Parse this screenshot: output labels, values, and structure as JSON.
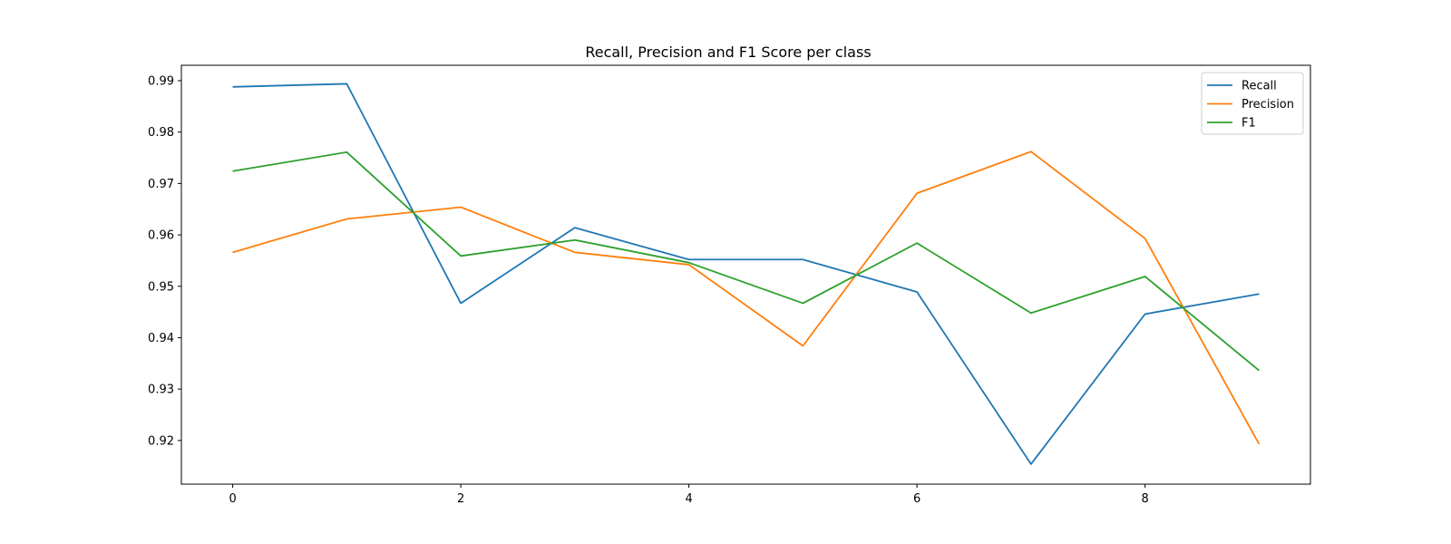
{
  "chart_data": {
    "type": "line",
    "title": "Recall, Precision and F1 Score per class",
    "xlabel": "",
    "ylabel": "",
    "x": [
      0,
      1,
      2,
      3,
      4,
      5,
      6,
      7,
      8,
      9
    ],
    "xlim": [
      -0.45,
      9.45
    ],
    "ylim": [
      0.9115,
      0.993
    ],
    "xticks": [
      0,
      2,
      4,
      6,
      8
    ],
    "xtick_labels": [
      "0",
      "2",
      "4",
      "6",
      "8"
    ],
    "yticks": [
      0.92,
      0.93,
      0.94,
      0.95,
      0.96,
      0.97,
      0.98,
      0.99
    ],
    "ytick_labels": [
      "0.92",
      "0.93",
      "0.94",
      "0.95",
      "0.96",
      "0.97",
      "0.98",
      "0.99"
    ],
    "grid": false,
    "legend_position": "top-right",
    "series": [
      {
        "name": "Recall",
        "color": "#1f77b4",
        "values": [
          0.9888,
          0.9894,
          0.9467,
          0.9614,
          0.9552,
          0.9552,
          0.9489,
          0.9154,
          0.9446,
          0.9485
        ]
      },
      {
        "name": "Precision",
        "color": "#ff7f0e",
        "values": [
          0.9566,
          0.9631,
          0.9654,
          0.9566,
          0.9542,
          0.9384,
          0.9681,
          0.9762,
          0.9593,
          0.9193
        ]
      },
      {
        "name": "F1",
        "color": "#2ca02c",
        "values": [
          0.9724,
          0.9761,
          0.9559,
          0.959,
          0.9546,
          0.9467,
          0.9584,
          0.9448,
          0.9519,
          0.9336
        ]
      }
    ]
  }
}
